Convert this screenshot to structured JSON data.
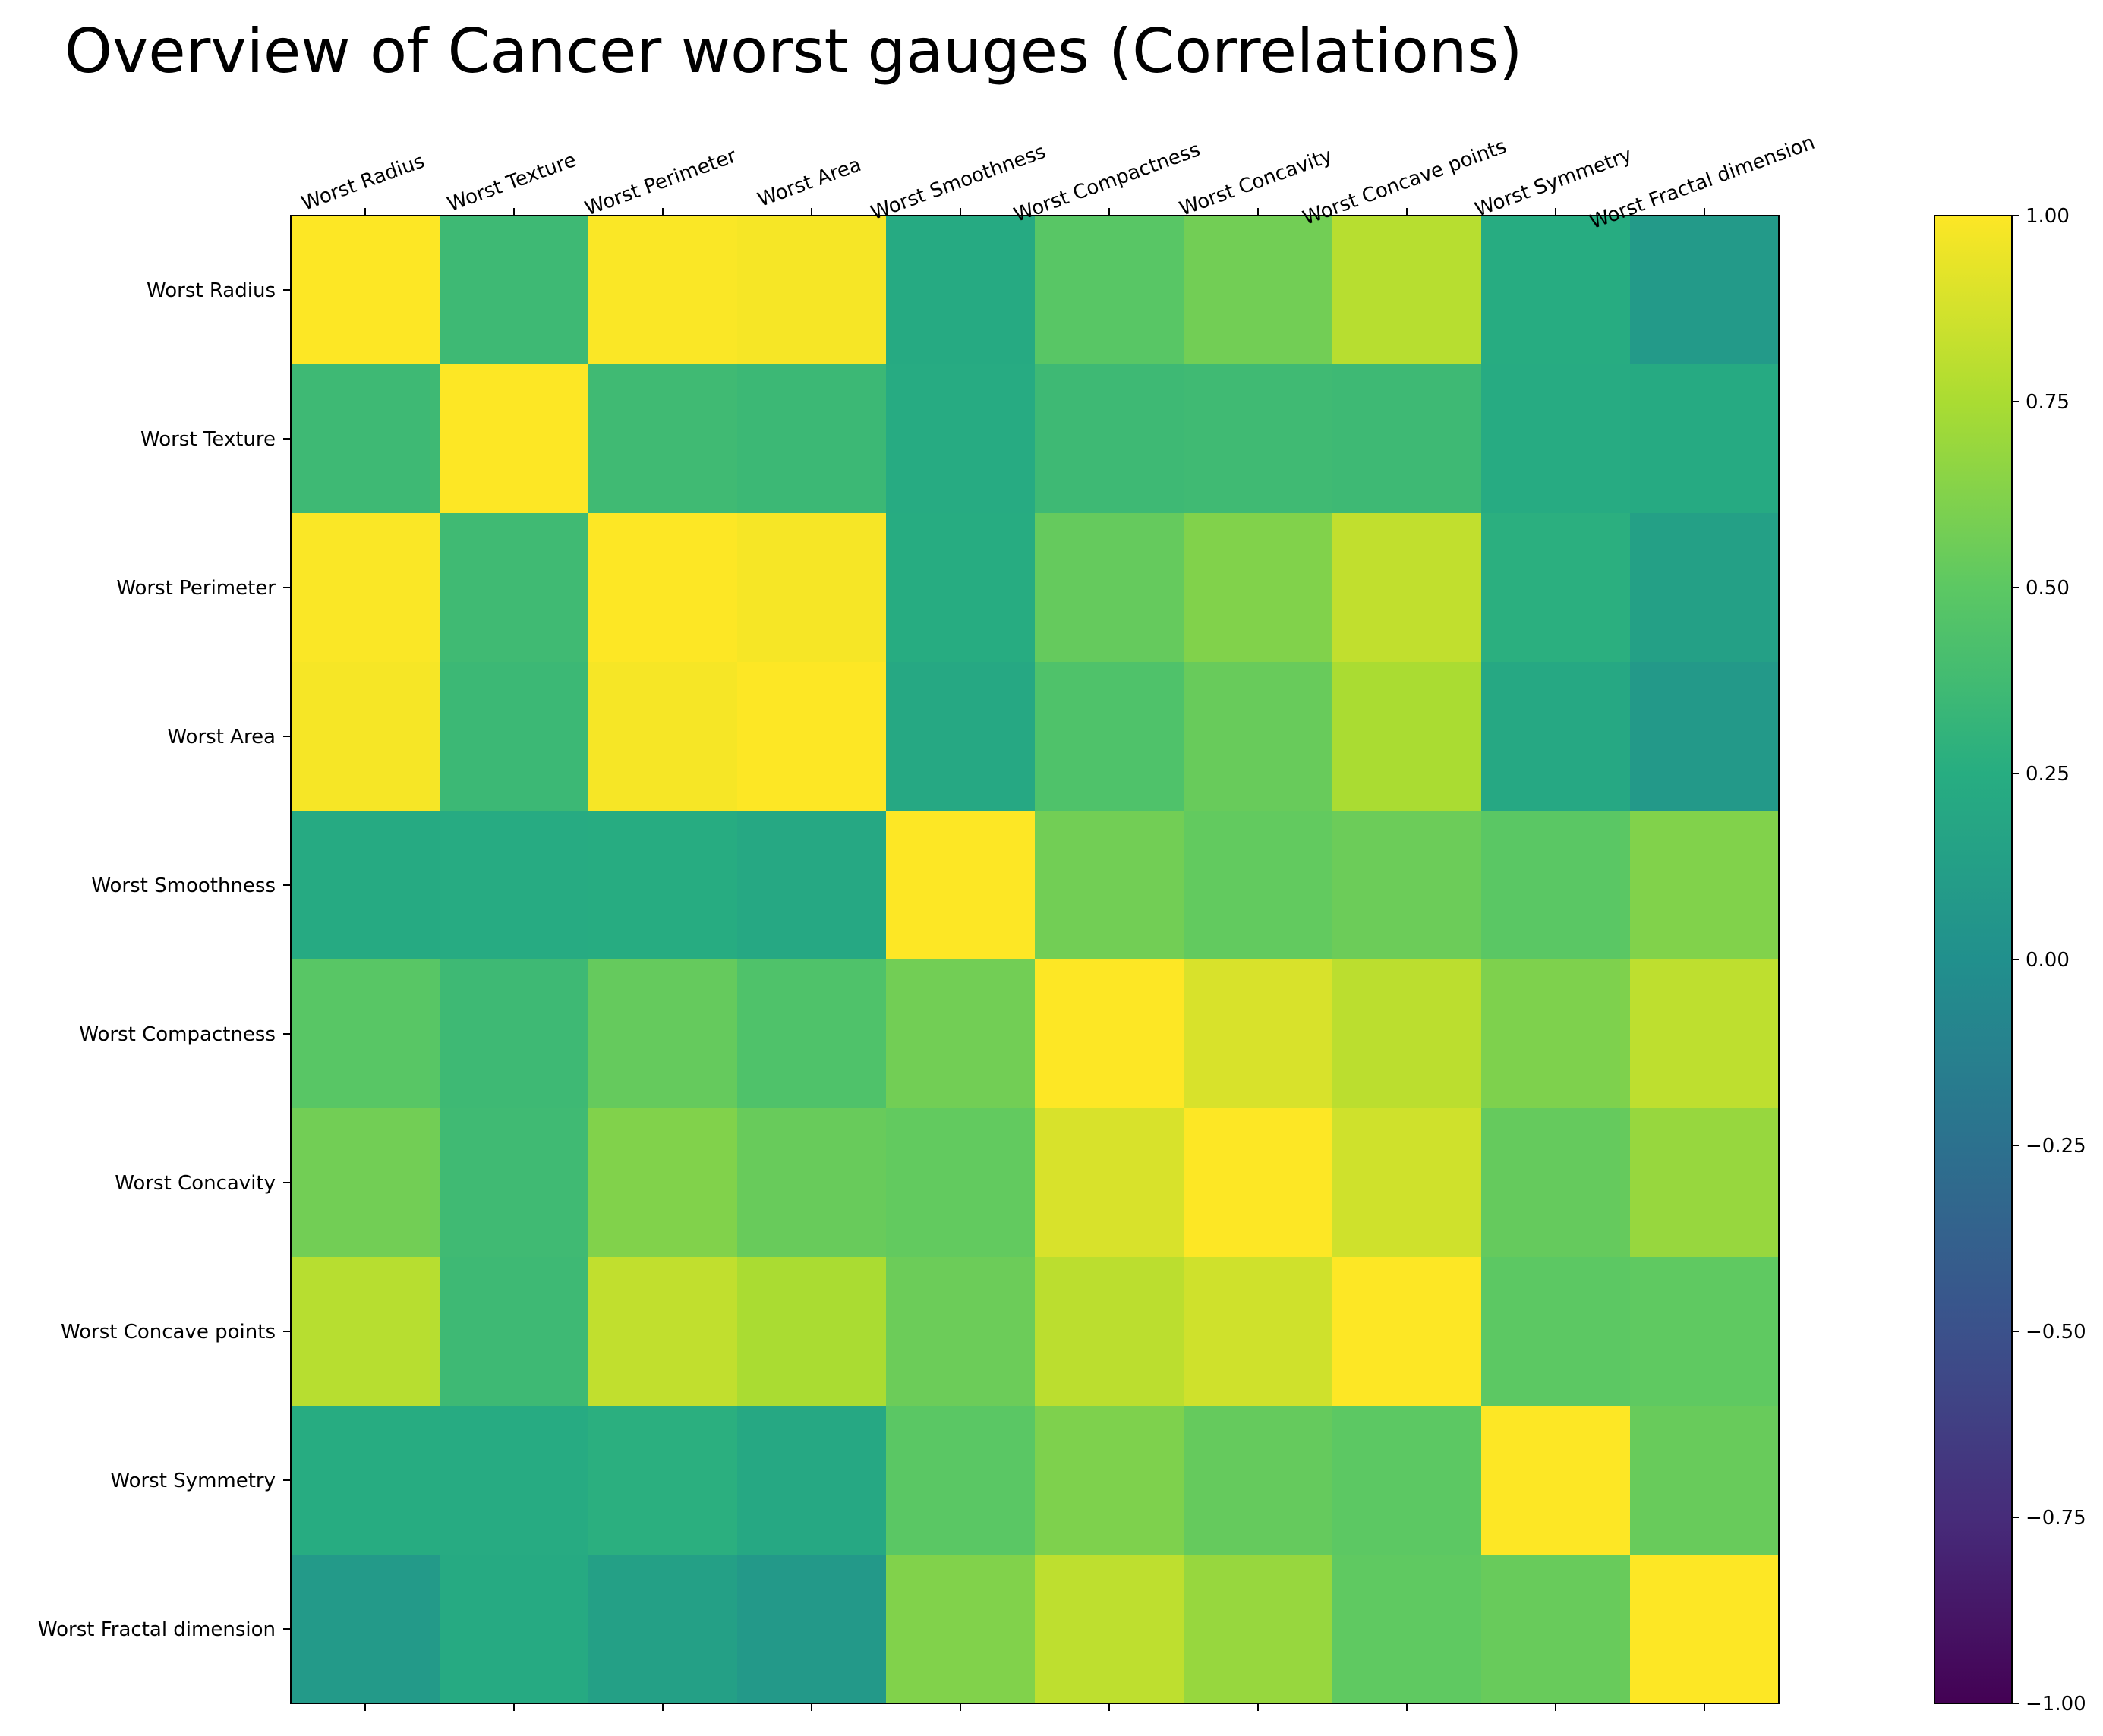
{
  "chart_data": {
    "type": "heatmap",
    "title": "Overview of Cancer worst gauges (Correlations)",
    "labels": [
      "Worst Radius",
      "Worst Texture",
      "Worst Perimeter",
      "Worst Area",
      "Worst Smoothness",
      "Worst Compactness",
      "Worst Concavity",
      "Worst Concave points",
      "Worst Symmetry",
      "Worst Fractal dimension"
    ],
    "matrix": [
      [
        1.0,
        0.36,
        0.99,
        0.98,
        0.22,
        0.48,
        0.57,
        0.79,
        0.24,
        0.09
      ],
      [
        0.36,
        1.0,
        0.37,
        0.35,
        0.23,
        0.36,
        0.37,
        0.36,
        0.23,
        0.22
      ],
      [
        0.99,
        0.37,
        1.0,
        0.98,
        0.24,
        0.53,
        0.62,
        0.82,
        0.27,
        0.14
      ],
      [
        0.98,
        0.35,
        0.98,
        1.0,
        0.21,
        0.44,
        0.54,
        0.75,
        0.21,
        0.08
      ],
      [
        0.22,
        0.23,
        0.24,
        0.21,
        1.0,
        0.57,
        0.52,
        0.55,
        0.49,
        0.62
      ],
      [
        0.48,
        0.36,
        0.53,
        0.44,
        0.57,
        1.0,
        0.89,
        0.8,
        0.61,
        0.81
      ],
      [
        0.57,
        0.37,
        0.62,
        0.54,
        0.52,
        0.89,
        1.0,
        0.86,
        0.53,
        0.69
      ],
      [
        0.79,
        0.36,
        0.82,
        0.75,
        0.55,
        0.8,
        0.86,
        1.0,
        0.5,
        0.51
      ],
      [
        0.24,
        0.23,
        0.27,
        0.21,
        0.49,
        0.61,
        0.53,
        0.5,
        1.0,
        0.54
      ],
      [
        0.09,
        0.22,
        0.14,
        0.08,
        0.62,
        0.81,
        0.69,
        0.51,
        0.54,
        1.0
      ]
    ],
    "colormap": "viridis",
    "vmin": -1.0,
    "vmax": 1.0,
    "colorbar": {
      "ticks": [
        1.0,
        0.75,
        0.5,
        0.25,
        0.0,
        -0.25,
        -0.5,
        -0.75,
        -1.0
      ],
      "tick_labels": [
        "1.00",
        "0.75",
        "0.50",
        "0.25",
        "0.00",
        "−0.25",
        "−0.50",
        "−0.75",
        "−1.00"
      ]
    },
    "x_tick_position": "top",
    "x_tick_rotation_deg": -20
  }
}
